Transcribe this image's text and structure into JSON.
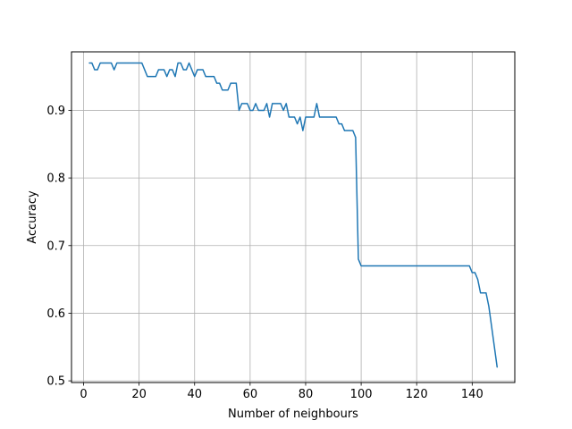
{
  "chart_data": {
    "type": "line",
    "title": "",
    "xlabel": "Number of neighbours",
    "ylabel": "Accuracy",
    "xlim": [
      -4.35,
      155.35
    ],
    "ylim": [
      0.4975,
      0.9865
    ],
    "xticks": [
      0,
      20,
      40,
      60,
      80,
      100,
      120,
      140
    ],
    "yticks": [
      0.5,
      0.6,
      0.7,
      0.8,
      0.9
    ],
    "ytick_labels": [
      "0.5",
      "0.6",
      "0.7",
      "0.8",
      "0.9"
    ],
    "grid": true,
    "line_color": "#1f77b4",
    "series": [
      {
        "x": [
          2,
          3,
          4,
          5,
          6,
          7,
          8,
          9,
          10,
          11,
          12,
          13,
          14,
          15,
          16,
          17,
          18,
          19,
          20,
          21,
          22,
          23,
          24,
          25,
          26,
          27,
          28,
          29,
          30,
          31,
          32,
          33,
          34,
          35,
          36,
          37,
          38,
          39,
          40,
          41,
          42,
          43,
          44,
          45,
          46,
          47,
          48,
          49,
          50,
          51,
          52,
          53,
          54,
          55,
          56,
          57,
          58,
          59,
          60,
          61,
          62,
          63,
          64,
          65,
          66,
          67,
          68,
          69,
          70,
          71,
          72,
          73,
          74,
          75,
          76,
          77,
          78,
          79,
          80,
          81,
          82,
          83,
          84,
          85,
          86,
          87,
          88,
          89,
          90,
          91,
          92,
          93,
          94,
          95,
          96,
          97,
          98,
          99,
          100,
          101,
          102,
          103,
          104,
          105,
          106,
          107,
          108,
          109,
          110,
          111,
          112,
          113,
          114,
          115,
          116,
          117,
          118,
          119,
          120,
          121,
          122,
          123,
          124,
          125,
          126,
          127,
          128,
          129,
          130,
          131,
          132,
          133,
          134,
          135,
          136,
          137,
          138,
          139,
          140,
          141,
          142,
          143,
          144,
          145,
          146,
          147,
          148,
          149
        ],
        "values": [
          0.97,
          0.97,
          0.96,
          0.96,
          0.97,
          0.97,
          0.97,
          0.97,
          0.97,
          0.96,
          0.97,
          0.97,
          0.97,
          0.97,
          0.97,
          0.97,
          0.97,
          0.97,
          0.97,
          0.97,
          0.96,
          0.95,
          0.95,
          0.95,
          0.95,
          0.96,
          0.96,
          0.96,
          0.95,
          0.96,
          0.96,
          0.95,
          0.97,
          0.97,
          0.96,
          0.96,
          0.97,
          0.96,
          0.95,
          0.96,
          0.96,
          0.96,
          0.95,
          0.95,
          0.95,
          0.95,
          0.94,
          0.94,
          0.93,
          0.93,
          0.93,
          0.94,
          0.94,
          0.94,
          0.9,
          0.91,
          0.91,
          0.91,
          0.9,
          0.9,
          0.91,
          0.9,
          0.9,
          0.9,
          0.91,
          0.89,
          0.91,
          0.91,
          0.91,
          0.91,
          0.9,
          0.91,
          0.89,
          0.89,
          0.89,
          0.88,
          0.89,
          0.87,
          0.89,
          0.89,
          0.89,
          0.89,
          0.91,
          0.89,
          0.89,
          0.89,
          0.89,
          0.89,
          0.89,
          0.89,
          0.88,
          0.88,
          0.87,
          0.87,
          0.87,
          0.87,
          0.86,
          0.68,
          0.67,
          0.67,
          0.67,
          0.67,
          0.67,
          0.67,
          0.67,
          0.67,
          0.67,
          0.67,
          0.67,
          0.67,
          0.67,
          0.67,
          0.67,
          0.67,
          0.67,
          0.67,
          0.67,
          0.67,
          0.67,
          0.67,
          0.67,
          0.67,
          0.67,
          0.67,
          0.67,
          0.67,
          0.67,
          0.67,
          0.67,
          0.67,
          0.67,
          0.67,
          0.67,
          0.67,
          0.67,
          0.67,
          0.67,
          0.67,
          0.66,
          0.66,
          0.65,
          0.63,
          0.63,
          0.63,
          0.61,
          0.58,
          0.55,
          0.52
        ]
      }
    ]
  }
}
